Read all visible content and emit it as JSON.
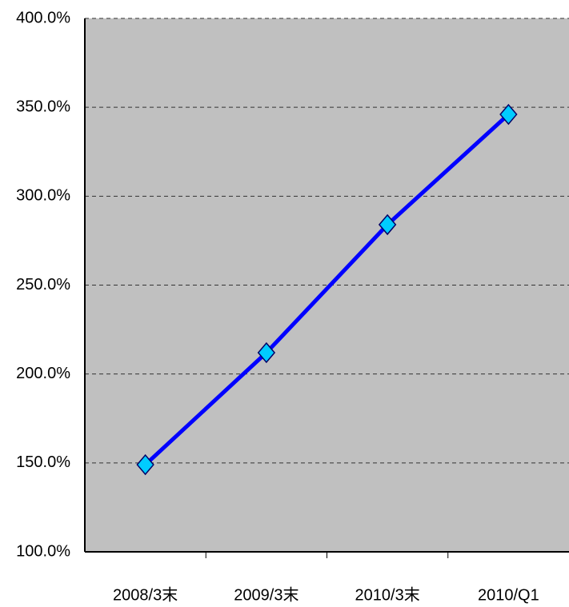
{
  "chart_data": {
    "type": "line",
    "categories": [
      "2008/3末",
      "2009/3末",
      "2010/3末",
      "2010/Q1"
    ],
    "series": [
      {
        "name": "series",
        "color": "#0000ff",
        "marker_color": "#00ccff",
        "values": [
          149,
          212,
          284,
          346
        ]
      }
    ],
    "ylim": [
      100,
      400
    ],
    "yticks": [
      {
        "value": 100,
        "label": "100.0%"
      },
      {
        "value": 150,
        "label": "150.0%"
      },
      {
        "value": 200,
        "label": "200.0%"
      },
      {
        "value": 250,
        "label": "250.0%"
      },
      {
        "value": 300,
        "label": "300.0%"
      },
      {
        "value": 350,
        "label": "350.0%"
      },
      {
        "value": 400,
        "label": "400.0%"
      }
    ],
    "grid": true
  }
}
